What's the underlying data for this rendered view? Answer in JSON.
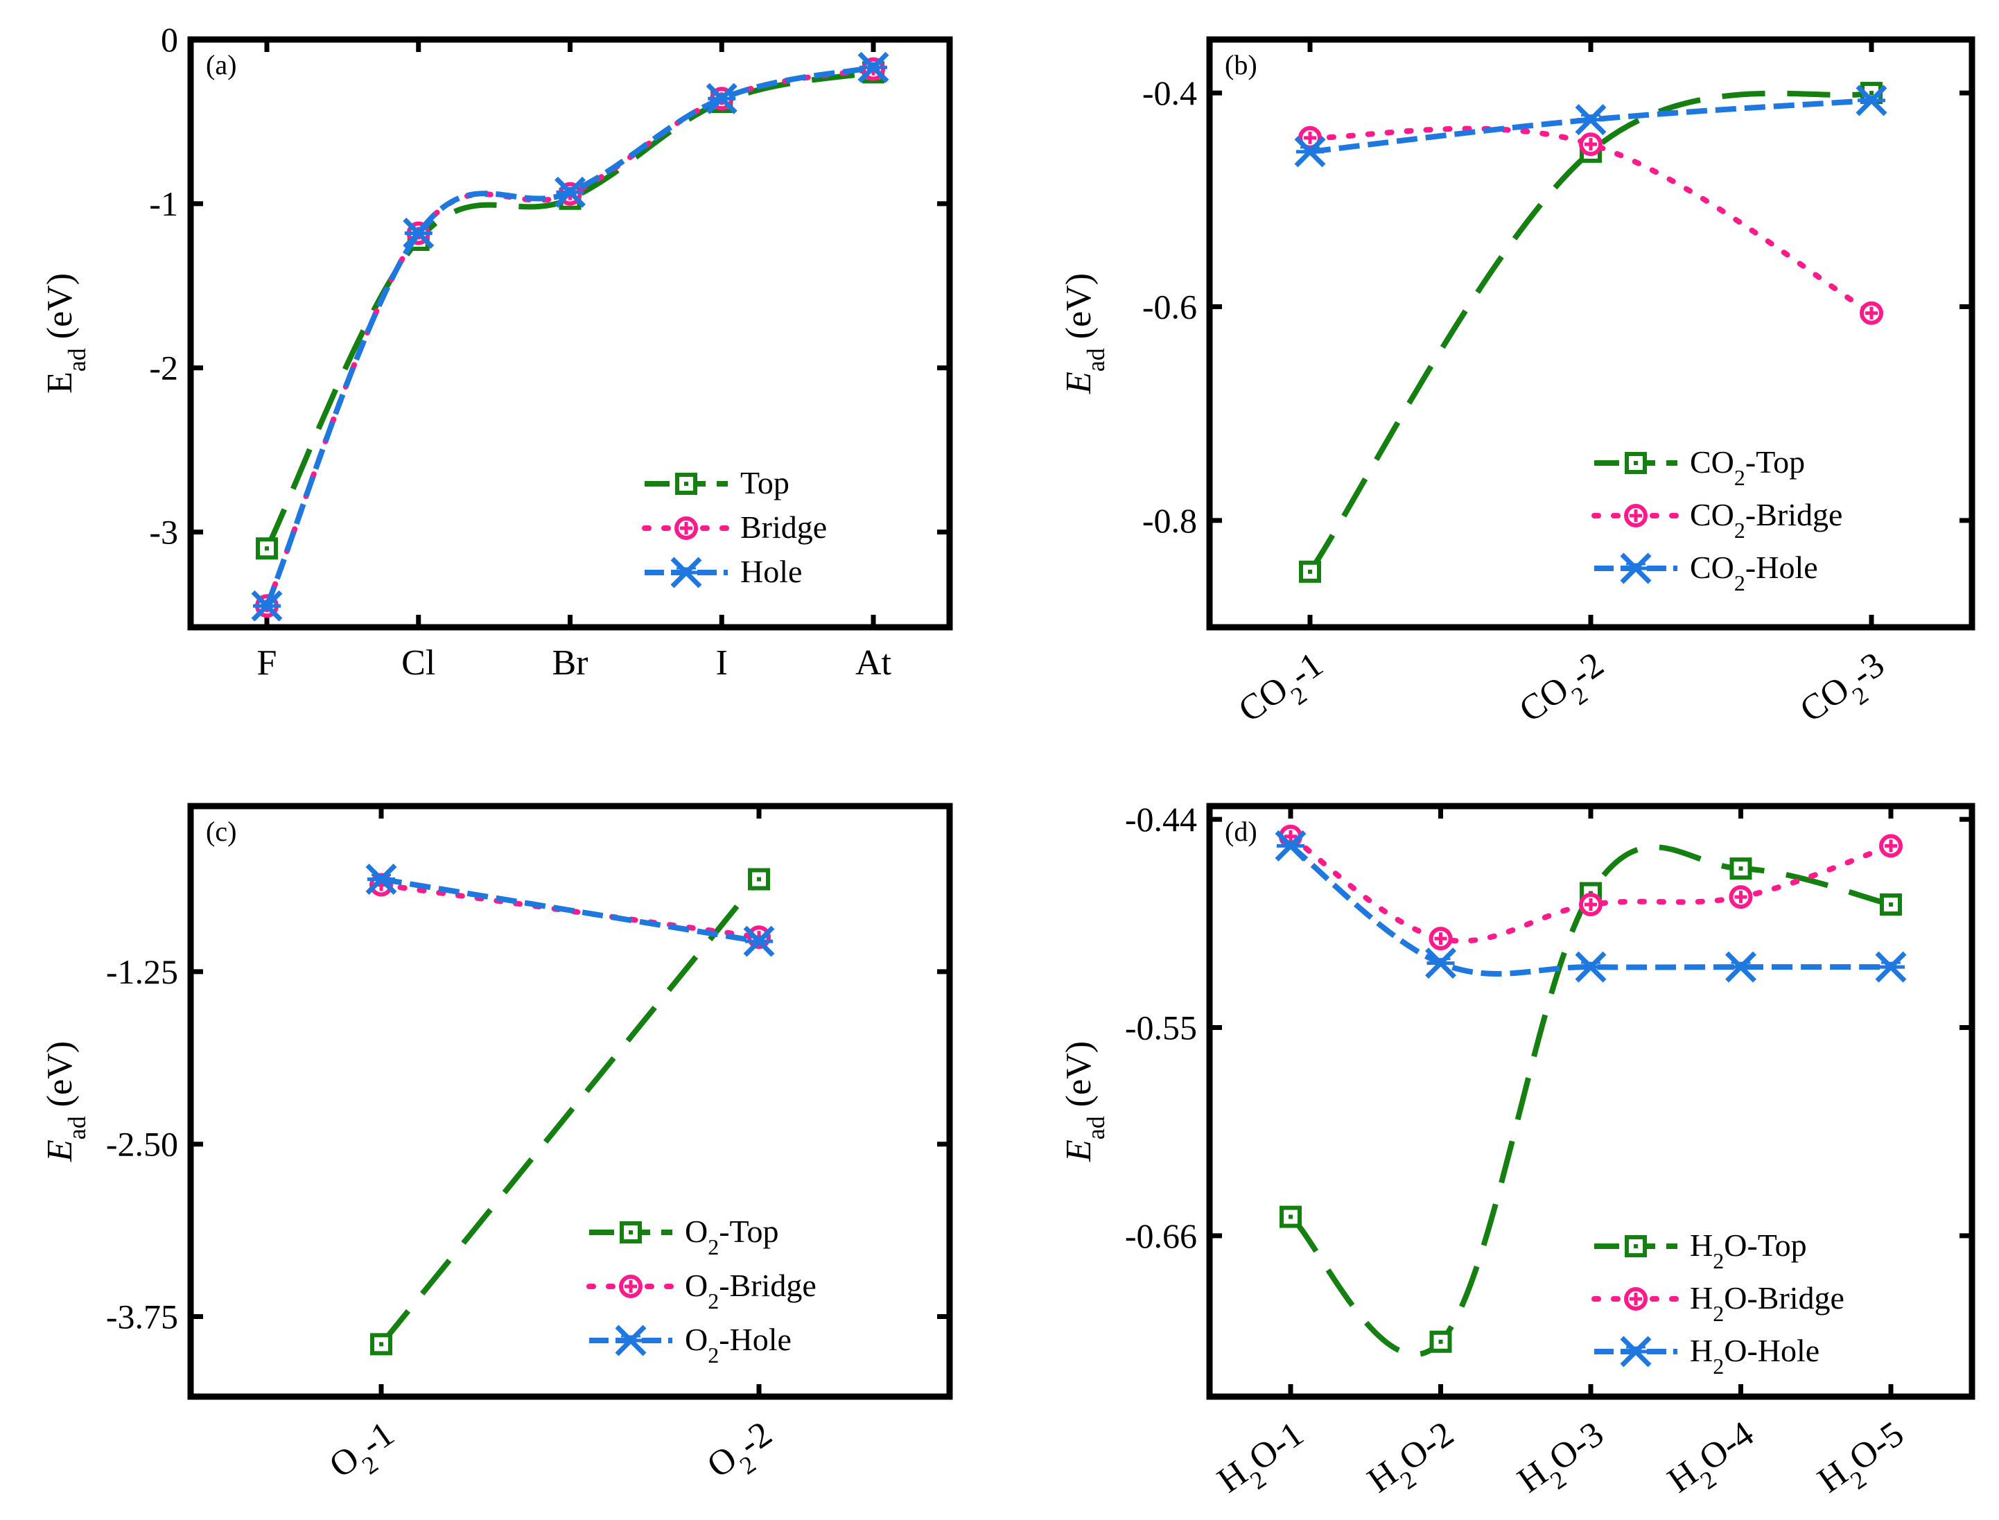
{
  "colors": {
    "top": "#138010",
    "bridge": "#ff1a8c",
    "hole": "#1e78e0",
    "axis": "#000000"
  },
  "series_style": {
    "Top": {
      "dash": "62 32",
      "marker": "square-dot"
    },
    "Bridge": {
      "dash": "6 22",
      "marker": "circle-plus"
    },
    "Hole": {
      "dash": "30 12",
      "marker": "star-x"
    }
  },
  "chart_data": [
    {
      "panel": "(a)",
      "type": "line",
      "ylabel_main": "E",
      "ylabel_sub": "ad",
      "ylabel_unit": " (eV)",
      "ylabel_italic": false,
      "xlabel": "",
      "categories": [
        {
          "main": "F"
        },
        {
          "main": "Cl"
        },
        {
          "main": "Br"
        },
        {
          "main": "I"
        },
        {
          "main": "At"
        }
      ],
      "ylim": [
        -3.58,
        0.0
      ],
      "yticks": [
        0,
        -1,
        -2,
        -3
      ],
      "yticklabels": [
        "0",
        "-1",
        "-2",
        "-3"
      ],
      "xrotate": false,
      "series": [
        {
          "key": "Top",
          "legend": [
            {
              "t": "Top"
            }
          ],
          "values": [
            -3.1,
            -1.22,
            -0.97,
            -0.38,
            -0.2
          ]
        },
        {
          "key": "Bridge",
          "legend": [
            {
              "t": "Bridge"
            }
          ],
          "values": [
            -3.45,
            -1.18,
            -0.94,
            -0.36,
            -0.18
          ]
        },
        {
          "key": "Hole",
          "legend": [
            {
              "t": "Hole"
            }
          ],
          "values": [
            -3.45,
            -1.18,
            -0.93,
            -0.36,
            -0.17
          ]
        }
      ],
      "legend_position": "bottom-right"
    },
    {
      "panel": "(b)",
      "type": "line",
      "ylabel_main": "E",
      "ylabel_sub": "ad",
      "ylabel_unit": " (eV)",
      "ylabel_italic": true,
      "xlabel": "",
      "categories": [
        {
          "main": "CO",
          "sub": "2",
          "tail": "-1"
        },
        {
          "main": "CO",
          "sub": "2",
          "tail": "-2"
        },
        {
          "main": "CO",
          "sub": "2",
          "tail": "-3"
        }
      ],
      "ylim": [
        -0.9,
        -0.35
      ],
      "yticks": [
        -0.4,
        -0.6,
        -0.8
      ],
      "yticklabels": [
        "-0.4",
        "-0.6",
        "-0.8"
      ],
      "xrotate": true,
      "series": [
        {
          "key": "Top",
          "legend": [
            {
              "t": "CO"
            },
            {
              "t": "2",
              "sub": true
            },
            {
              "t": "-Top"
            }
          ],
          "values": [
            -0.848,
            -0.455,
            -0.4
          ]
        },
        {
          "key": "Bridge",
          "legend": [
            {
              "t": "CO"
            },
            {
              "t": "2",
              "sub": true
            },
            {
              "t": "-Bridge"
            }
          ],
          "values": [
            -0.442,
            -0.448,
            -0.606
          ]
        },
        {
          "key": "Hole",
          "legend": [
            {
              "t": "CO"
            },
            {
              "t": "2",
              "sub": true
            },
            {
              "t": "-Hole"
            }
          ],
          "values": [
            -0.455,
            -0.425,
            -0.407
          ]
        }
      ],
      "legend_position": "bottom-right"
    },
    {
      "panel": "(c)",
      "type": "line",
      "ylabel_main": "E",
      "ylabel_sub": "ad",
      "ylabel_unit": " (eV)",
      "ylabel_italic": true,
      "xlabel": "",
      "categories": [
        {
          "main": "O",
          "sub": "2",
          "tail": "-1"
        },
        {
          "main": "O",
          "sub": "2",
          "tail": "-2"
        }
      ],
      "ylim": [
        -4.33,
        -0.05
      ],
      "yticks": [
        -1.25,
        -2.5,
        -3.75
      ],
      "yticklabels": [
        "-1.25",
        "-2.50",
        "-3.75"
      ],
      "xrotate": true,
      "series": [
        {
          "key": "Top",
          "legend": [
            {
              "t": "O"
            },
            {
              "t": "2",
              "sub": true
            },
            {
              "t": "-Top"
            }
          ],
          "values": [
            -3.95,
            -0.58
          ]
        },
        {
          "key": "Bridge",
          "legend": [
            {
              "t": "O"
            },
            {
              "t": "2",
              "sub": true
            },
            {
              "t": "-Bridge"
            }
          ],
          "values": [
            -0.62,
            -1.0
          ]
        },
        {
          "key": "Hole",
          "legend": [
            {
              "t": "O"
            },
            {
              "t": "2",
              "sub": true
            },
            {
              "t": "-Hole"
            }
          ],
          "values": [
            -0.58,
            -1.03
          ]
        }
      ],
      "legend_position": "bottom-right"
    },
    {
      "panel": "(d)",
      "type": "line",
      "ylabel_main": "E",
      "ylabel_sub": "ad",
      "ylabel_unit": " (eV)",
      "ylabel_italic": true,
      "xlabel": "",
      "categories": [
        {
          "main": "H",
          "sub": "2",
          "tail": "O-1"
        },
        {
          "main": "H",
          "sub": "2",
          "tail": "O-2"
        },
        {
          "main": "H",
          "sub": "2",
          "tail": "O-3"
        },
        {
          "main": "H",
          "sub": "2",
          "tail": "O-4"
        },
        {
          "main": "H",
          "sub": "2",
          "tail": "O-5"
        }
      ],
      "ylim": [
        -0.745,
        -0.433
      ],
      "yticks": [
        -0.44,
        -0.55,
        -0.66
      ],
      "yticklabels": [
        "-0.44",
        "-0.55",
        "-0.66"
      ],
      "xrotate": true,
      "series": [
        {
          "key": "Top",
          "legend": [
            {
              "t": "H"
            },
            {
              "t": "2",
              "sub": true
            },
            {
              "t": "O-Top"
            }
          ],
          "values": [
            -0.65,
            -0.716,
            -0.479,
            -0.466,
            -0.485
          ]
        },
        {
          "key": "Bridge",
          "legend": [
            {
              "t": "H"
            },
            {
              "t": "2",
              "sub": true
            },
            {
              "t": "O-Bridge"
            }
          ],
          "values": [
            -0.449,
            -0.503,
            -0.485,
            -0.481,
            -0.454
          ]
        },
        {
          "key": "Hole",
          "legend": [
            {
              "t": "H"
            },
            {
              "t": "2",
              "sub": true
            },
            {
              "t": "O-Hole"
            }
          ],
          "values": [
            -0.454,
            -0.516,
            -0.518,
            -0.518,
            -0.518
          ]
        }
      ],
      "legend_position": "bottom-right"
    }
  ]
}
